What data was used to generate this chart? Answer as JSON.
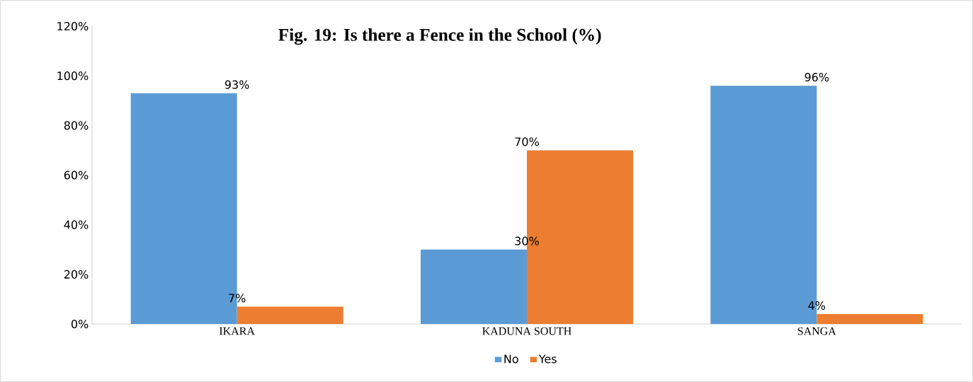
{
  "chart_data": {
    "type": "bar",
    "title": "Fig. 19: Is there a Fence in the School (%)",
    "categories": [
      "IKARA",
      "KADUNA SOUTH",
      "SANGA"
    ],
    "series": [
      {
        "name": "No",
        "color": "#5b9bd5",
        "values": [
          93,
          30,
          96
        ],
        "value_labels": [
          "93%",
          "30%",
          "96%"
        ]
      },
      {
        "name": "Yes",
        "color": "#ed7d31",
        "values": [
          7,
          70,
          4
        ],
        "value_labels": [
          "7%",
          "70%",
          "4%"
        ]
      }
    ],
    "ylim": [
      0,
      120
    ],
    "yticks": [
      {
        "value": 0,
        "label": "0%"
      },
      {
        "value": 20,
        "label": "20%"
      },
      {
        "value": 40,
        "label": "40%"
      },
      {
        "value": 60,
        "label": "60%"
      },
      {
        "value": 80,
        "label": "80%"
      },
      {
        "value": 100,
        "label": "100%"
      },
      {
        "value": 120,
        "label": "120%"
      }
    ],
    "legend": "bottom"
  }
}
